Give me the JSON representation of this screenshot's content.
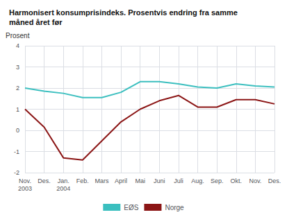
{
  "chart_data": {
    "type": "line",
    "title": "Harmonisert konsumprisindeks. Prosentvis endring fra samme\nmåned året før",
    "ylabel": "Prosent",
    "categories": [
      "Nov.\n2003",
      "Des.",
      "Jan.\n2004",
      "Feb.",
      "Mars",
      "April",
      "Mai",
      "Juni",
      "Juli",
      "Aug.",
      "Sep.",
      "Okt.",
      "Nov.",
      "Des."
    ],
    "series": [
      {
        "name": "EØS",
        "color": "#3BBFBF",
        "values": [
          2.0,
          1.85,
          1.75,
          1.55,
          1.55,
          1.8,
          2.3,
          2.3,
          2.2,
          2.05,
          2.0,
          2.2,
          2.1,
          2.05
        ]
      },
      {
        "name": "Norge",
        "color": "#8B1515",
        "values": [
          1.0,
          0.15,
          -1.3,
          -1.4,
          -0.5,
          0.4,
          1.0,
          1.4,
          1.65,
          1.1,
          1.1,
          1.45,
          1.45,
          1.25
        ]
      }
    ],
    "ylim": [
      -2,
      4
    ],
    "yticks": [
      -2,
      -1,
      0,
      1,
      2,
      3,
      4
    ],
    "grid": true,
    "legend": "bottom"
  }
}
